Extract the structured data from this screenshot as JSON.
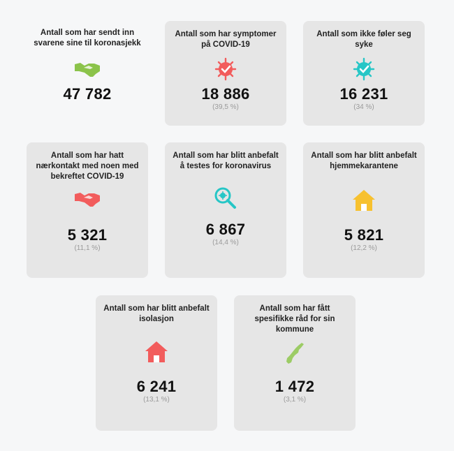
{
  "cards": [
    {
      "title": "Antall som har sendt inn svarene sine til koronasjekk",
      "value": "47 782",
      "pct": "",
      "icon": "handshake-icon",
      "color": "#8bc34a"
    },
    {
      "title": "Antall som har symptomer på COVID-19",
      "value": "18 886",
      "pct": "(39,5 %)",
      "icon": "virus-check-icon",
      "color": "#f25c5c"
    },
    {
      "title": "Antall som ikke føler seg syke",
      "value": "16 231",
      "pct": "(34 %)",
      "icon": "virus-check-icon",
      "color": "#26c6c6"
    },
    {
      "title": "Antall som har hatt nærkontakt med noen med bekreftet COVID-19",
      "value": "5 321",
      "pct": "(11,1 %)",
      "icon": "handshake-icon",
      "color": "#f25c5c"
    },
    {
      "title": "Antall som har blitt anbefalt å testes for koronavirus",
      "value": "6 867",
      "pct": "(14,4 %)",
      "icon": "magnifier-virus-icon",
      "color": "#26c6c6"
    },
    {
      "title": "Antall som har blitt anbefalt hjemmekarantene",
      "value": "5 821",
      "pct": "(12,2 %)",
      "icon": "house-icon",
      "color": "#f7c12f"
    },
    {
      "title": "Antall som har blitt anbefalt isolasjon",
      "value": "6 241",
      "pct": "(13,1 %)",
      "icon": "house-icon",
      "color": "#f25c5c"
    },
    {
      "title": "Antall som har fått spesifikke råd for sin kommune",
      "value": "1 472",
      "pct": "(3,1 %)",
      "icon": "norway-map-icon",
      "color": "#9ccc65"
    }
  ]
}
